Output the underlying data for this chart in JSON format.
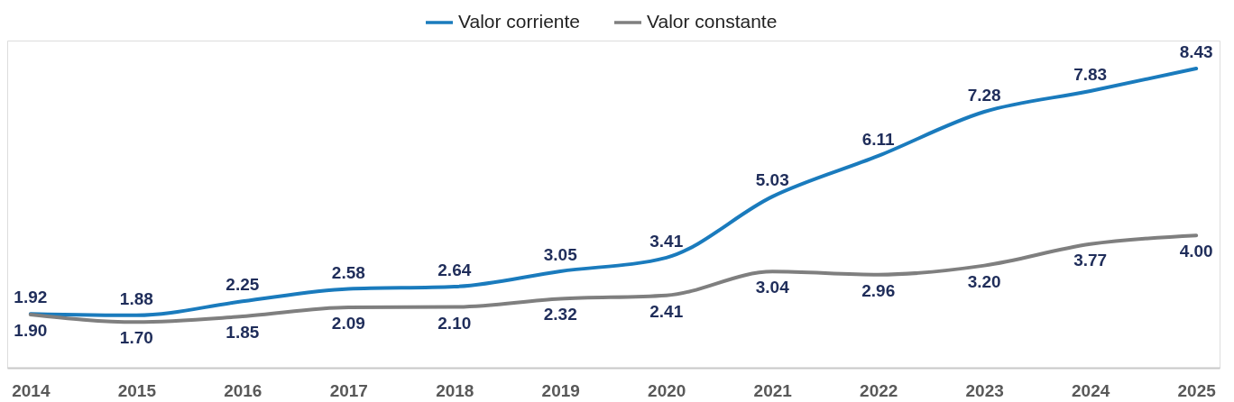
{
  "chart_data": {
    "type": "line",
    "categories": [
      "2014",
      "2015",
      "2016",
      "2017",
      "2018",
      "2019",
      "2020",
      "2021",
      "2022",
      "2023",
      "2024",
      "2025"
    ],
    "series": [
      {
        "name": "Valor corriente",
        "color": "#1a7bbd",
        "values": [
          1.92,
          1.88,
          2.25,
          2.58,
          2.64,
          3.05,
          3.41,
          5.03,
          6.11,
          7.28,
          7.83,
          8.43
        ],
        "value_labels": [
          "1.92",
          "1.88",
          "2.25",
          "2.58",
          "2.64",
          "3.05",
          "3.41",
          "5.03",
          "6.11",
          "7.28",
          "7.83",
          "8.43"
        ]
      },
      {
        "name": "Valor constante",
        "color": "#7f7f7f",
        "values": [
          1.9,
          1.7,
          1.85,
          2.09,
          2.1,
          2.32,
          2.41,
          3.04,
          2.96,
          3.2,
          3.77,
          4.0
        ],
        "value_labels": [
          "1.90",
          "1.70",
          "1.85",
          "2.09",
          "2.10",
          "2.32",
          "2.41",
          "3.04",
          "2.96",
          "3.20",
          "3.77",
          "4.00"
        ]
      }
    ],
    "legend": "top",
    "tick_labels": "x"
  }
}
